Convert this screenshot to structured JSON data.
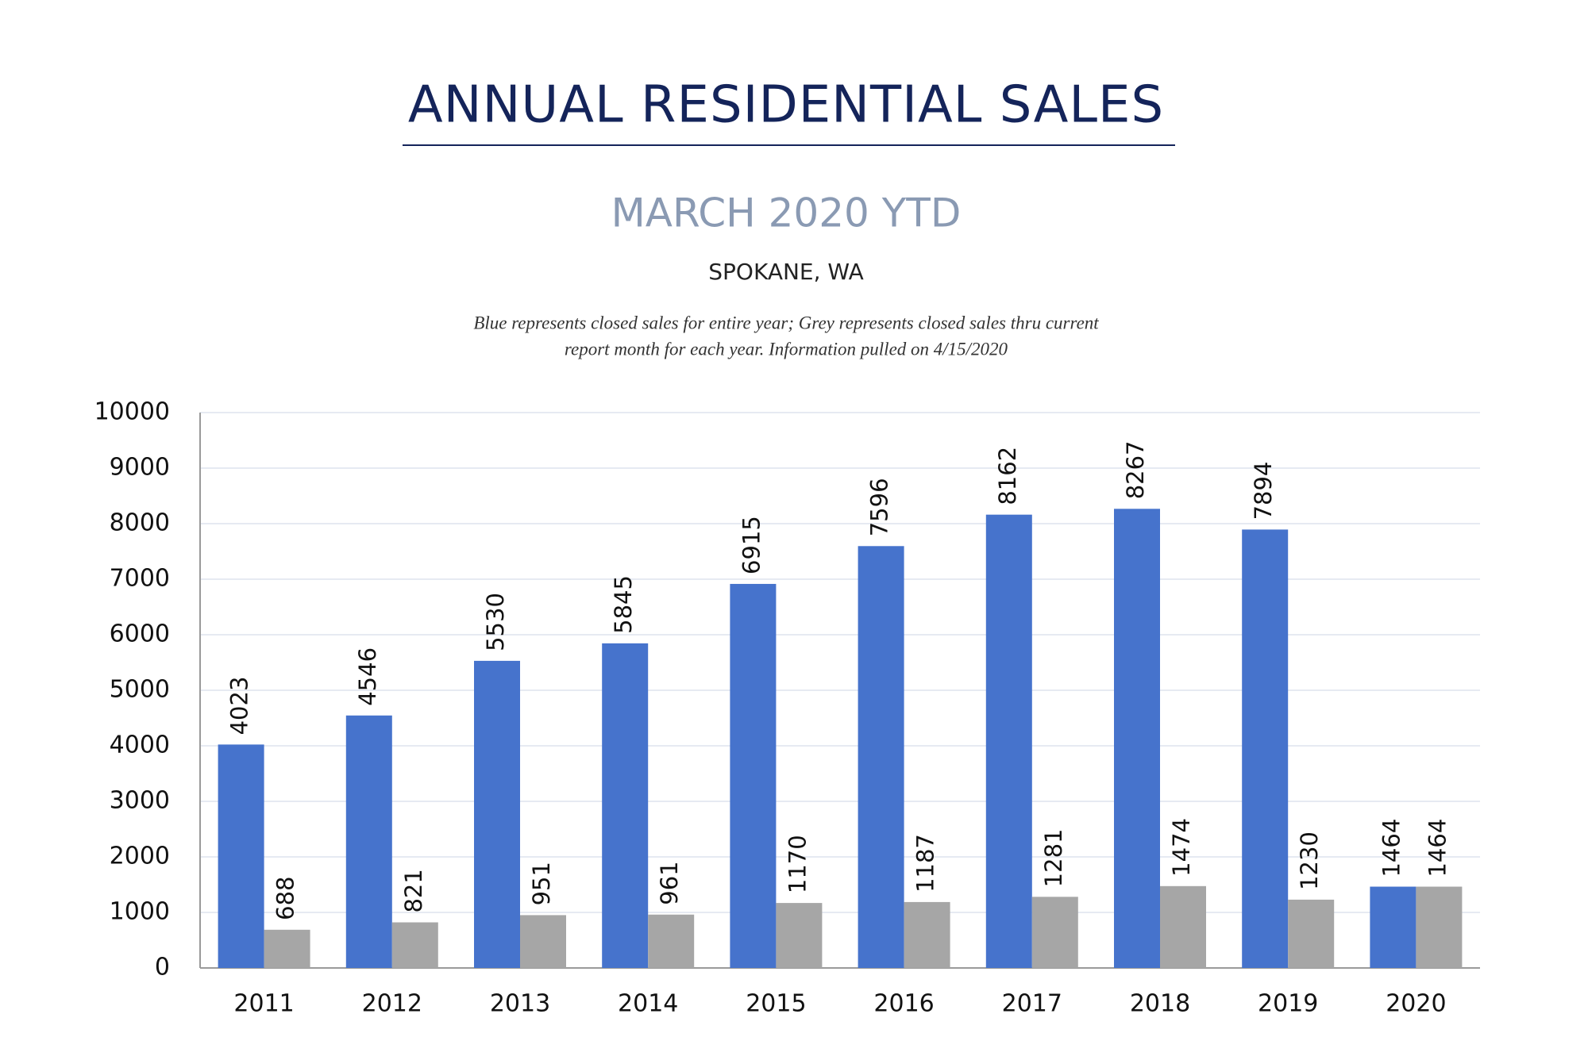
{
  "chart_data": {
    "type": "bar",
    "title": "ANNUAL RESIDENTIAL SALES",
    "subtitle": "MARCH 2020 YTD",
    "location": "SPOKANE, WA",
    "note": [
      "Blue represents closed sales for entire year; Grey represents closed sales thru current",
      "report month for each year.  Information pulled on 4/15/2020"
    ],
    "categories": [
      "2011",
      "2012",
      "2013",
      "2014",
      "2015",
      "2016",
      "2017",
      "2018",
      "2019",
      "2020"
    ],
    "series": [
      {
        "color": "#4673cc",
        "values": [
          4023,
          4546,
          5530,
          5845,
          6915,
          7596,
          8162,
          8267,
          7894,
          1464
        ]
      },
      {
        "color": "#a6a6a6",
        "values": [
          688,
          821,
          951,
          961,
          1170,
          1187,
          1281,
          1474,
          1230,
          1464
        ]
      }
    ],
    "ylim": [
      0,
      10000
    ],
    "yticks": [
      0,
      1000,
      2000,
      3000,
      4000,
      5000,
      6000,
      7000,
      8000,
      9000,
      10000
    ],
    "grid": true
  }
}
